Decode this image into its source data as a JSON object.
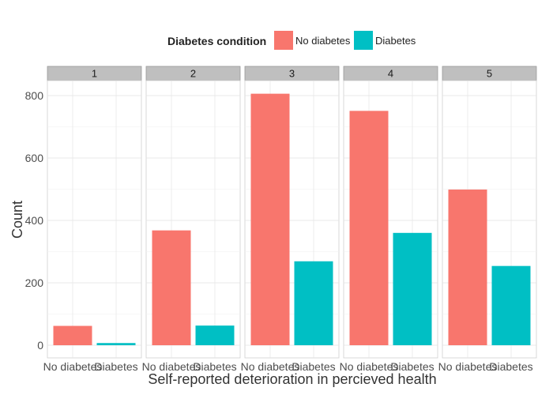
{
  "chart_data": {
    "type": "bar",
    "xlabel": "Self-reported deterioration in percieved health",
    "ylabel": "Count",
    "ylim": [
      0,
      870
    ],
    "yticks": [
      0,
      200,
      400,
      600,
      800
    ],
    "legend": {
      "title": "Diabetes condition",
      "placement": "top",
      "entries": [
        {
          "name": "No diabetes",
          "color": "#F8766D"
        },
        {
          "name": "Diabetes",
          "color": "#00BFC4"
        }
      ]
    },
    "facet_variable": "Self-reported deterioration in percieved health",
    "facets": [
      {
        "label": "1",
        "categories": [
          "No diabetes",
          "Diabetes"
        ],
        "values": [
          62,
          7
        ]
      },
      {
        "label": "2",
        "categories": [
          "No diabetes",
          "Diabetes"
        ],
        "values": [
          368,
          63
        ]
      },
      {
        "label": "3",
        "categories": [
          "No diabetes",
          "Diabetes"
        ],
        "values": [
          806,
          269
        ]
      },
      {
        "label": "4",
        "categories": [
          "No diabetes",
          "Diabetes"
        ],
        "values": [
          751,
          360
        ]
      },
      {
        "label": "5",
        "categories": [
          "No diabetes",
          "Diabetes"
        ],
        "values": [
          499,
          254
        ]
      }
    ],
    "grid": true
  }
}
